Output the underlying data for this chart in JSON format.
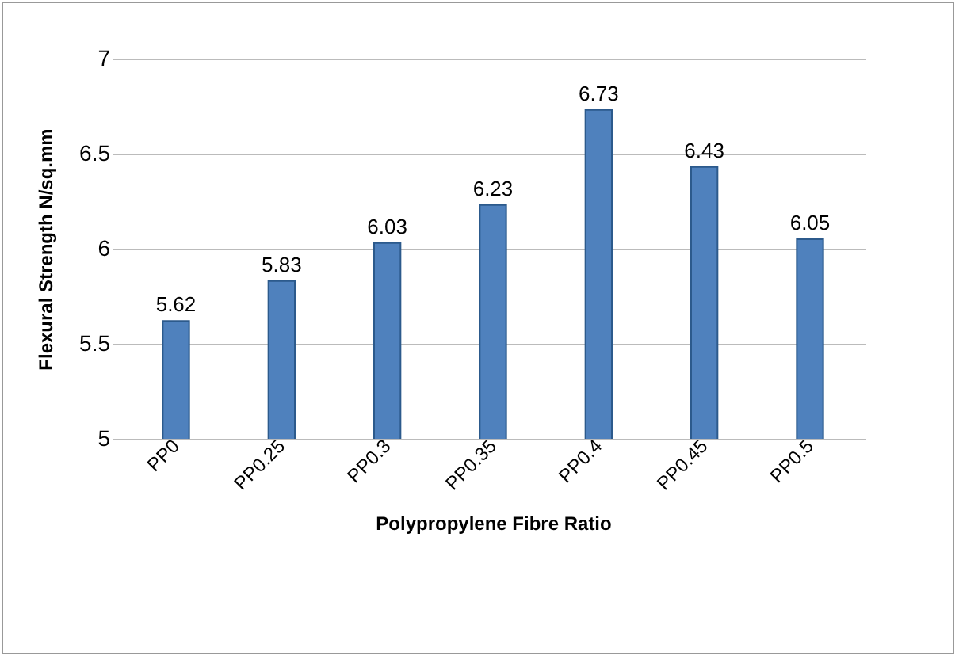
{
  "chart_data": {
    "type": "bar",
    "xlabel": "Polypropylene  Fibre Ratio",
    "ylabel": "Flexural   Strength N/sq.mm",
    "categories": [
      "PP0",
      "PP0.25",
      "PP0.3",
      "PP0.35",
      "PP0.4",
      "PP0.45",
      "PP0.5"
    ],
    "values": [
      5.62,
      5.83,
      6.03,
      6.23,
      6.73,
      6.43,
      6.05
    ],
    "color": "#4f81bd",
    "ylim": [
      5,
      7
    ],
    "yticks": [
      5,
      5.5,
      6,
      6.5,
      7
    ],
    "grid": "y",
    "data_labels": true
  }
}
